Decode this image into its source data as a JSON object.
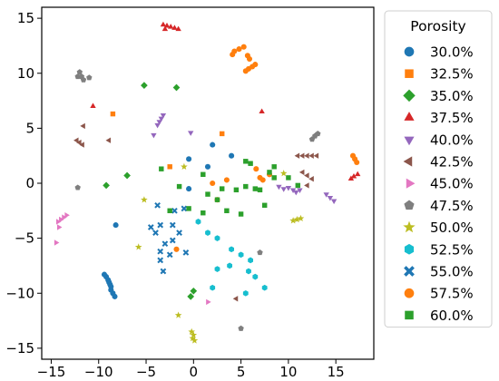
{
  "chart_data": {
    "type": "scatter",
    "title": "",
    "xlabel": "",
    "ylabel": "",
    "xlim": [
      -16,
      19
    ],
    "ylim": [
      -16,
      16
    ],
    "xticks": [
      -15,
      -10,
      -5,
      0,
      5,
      10,
      15
    ],
    "yticks": [
      -15,
      -10,
      -5,
      0,
      5,
      10,
      15
    ],
    "grid": false,
    "legend": {
      "title": "Porosity",
      "placement": "outside-right"
    },
    "series": [
      {
        "name": "30.0%",
        "color": "#1f77b4",
        "marker": "circle",
        "points": [
          [
            -9.2,
            -8.5
          ],
          [
            -9.0,
            -8.8
          ],
          [
            -9.4,
            -8.3
          ],
          [
            -8.9,
            -9.0
          ],
          [
            -8.7,
            -9.7
          ],
          [
            -8.5,
            -10.0
          ],
          [
            -8.3,
            -10.3
          ],
          [
            -8.7,
            -9.4
          ],
          [
            -8.8,
            -9.2
          ],
          [
            -8.2,
            -3.8
          ],
          [
            -0.5,
            -0.5
          ],
          [
            1.5,
            1.5
          ],
          [
            2.0,
            3.5
          ],
          [
            4.0,
            2.5
          ],
          [
            -0.5,
            2.2
          ]
        ]
      },
      {
        "name": "32.5%",
        "color": "#ff7f0e",
        "marker": "square",
        "points": [
          [
            -8.5,
            6.3
          ],
          [
            -2.5,
            1.5
          ],
          [
            3.0,
            4.5
          ]
        ]
      },
      {
        "name": "35.0%",
        "color": "#2ca02c",
        "marker": "diamond",
        "points": [
          [
            -5.2,
            8.9
          ],
          [
            -1.8,
            8.7
          ],
          [
            -7.0,
            0.7
          ],
          [
            -9.2,
            -0.2
          ],
          [
            -0.3,
            -10.3
          ],
          [
            0.0,
            -9.8
          ]
        ]
      },
      {
        "name": "37.5%",
        "color": "#d62728",
        "marker": "triangle-up",
        "points": [
          [
            -3.2,
            14.4
          ],
          [
            -2.8,
            14.3
          ],
          [
            -2.4,
            14.2
          ],
          [
            -2.0,
            14.1
          ],
          [
            -1.6,
            14.0
          ],
          [
            -3.0,
            14.0
          ],
          [
            -10.6,
            7.0
          ],
          [
            7.2,
            6.5
          ],
          [
            16.6,
            0.4
          ],
          [
            16.9,
            0.6
          ],
          [
            17.3,
            0.8
          ]
        ]
      },
      {
        "name": "40.0%",
        "color": "#9467bd",
        "marker": "triangle-down",
        "points": [
          [
            -3.6,
            5.6
          ],
          [
            -3.4,
            5.9
          ],
          [
            -3.2,
            6.2
          ],
          [
            -3.8,
            5.3
          ],
          [
            -4.2,
            4.4
          ],
          [
            -0.3,
            4.6
          ],
          [
            9.5,
            -0.5
          ],
          [
            10.0,
            -0.4
          ],
          [
            10.5,
            -0.6
          ],
          [
            10.8,
            -0.8
          ],
          [
            11.2,
            -0.6
          ],
          [
            9.0,
            -0.3
          ],
          [
            14.0,
            -1.0
          ],
          [
            14.4,
            -1.3
          ],
          [
            14.8,
            -1.6
          ]
        ]
      },
      {
        "name": "42.5%",
        "color": "#8c564b",
        "marker": "triangle-left",
        "points": [
          [
            -12.0,
            3.7
          ],
          [
            -11.7,
            3.5
          ],
          [
            -12.3,
            3.9
          ],
          [
            -11.6,
            5.2
          ],
          [
            -8.9,
            3.9
          ],
          [
            11.0,
            2.5
          ],
          [
            11.5,
            2.5
          ],
          [
            12.0,
            2.5
          ],
          [
            12.5,
            2.5
          ],
          [
            13.0,
            2.5
          ],
          [
            11.5,
            1.0
          ],
          [
            12.0,
            0.7
          ],
          [
            12.5,
            0.4
          ],
          [
            12.0,
            -0.2
          ],
          [
            4.5,
            -10.5
          ]
        ]
      },
      {
        "name": "45.0%",
        "color": "#e377c2",
        "marker": "triangle-right",
        "points": [
          [
            -14.3,
            -3.5
          ],
          [
            -14.0,
            -3.3
          ],
          [
            -13.7,
            -3.1
          ],
          [
            -13.4,
            -2.9
          ],
          [
            -14.2,
            -4.0
          ],
          [
            -14.5,
            -5.4
          ],
          [
            1.5,
            -10.8
          ]
        ]
      },
      {
        "name": "47.5%",
        "color": "#7f7f7f",
        "marker": "pentagon",
        "points": [
          [
            -12.0,
            10.1
          ],
          [
            -11.8,
            9.7
          ],
          [
            -11.6,
            9.4
          ],
          [
            -12.2,
            9.7
          ],
          [
            -11.0,
            9.6
          ],
          [
            -12.2,
            -0.4
          ],
          [
            12.5,
            4.0
          ],
          [
            12.8,
            4.3
          ],
          [
            13.1,
            4.5
          ],
          [
            7.0,
            -6.3
          ],
          [
            5.0,
            -13.2
          ]
        ]
      },
      {
        "name": "50.0%",
        "color": "#bcbd22",
        "marker": "star",
        "points": [
          [
            -0.2,
            -13.5
          ],
          [
            0.0,
            -13.8
          ],
          [
            -0.1,
            -14.1
          ],
          [
            0.1,
            -14.3
          ],
          [
            -1.6,
            -12.0
          ],
          [
            -5.2,
            -1.5
          ],
          [
            -5.8,
            -5.8
          ],
          [
            10.5,
            -3.4
          ],
          [
            10.9,
            -3.3
          ],
          [
            11.3,
            -3.2
          ],
          [
            -1.0,
            1.5
          ],
          [
            9.5,
            0.9
          ]
        ]
      },
      {
        "name": "52.5%",
        "color": "#17becf",
        "marker": "hexagon",
        "points": [
          [
            0.5,
            -3.5
          ],
          [
            1.5,
            -4.5
          ],
          [
            2.5,
            -5.0
          ],
          [
            4.0,
            -6.0
          ],
          [
            5.0,
            -6.5
          ],
          [
            5.8,
            -8.0
          ],
          [
            6.5,
            -8.5
          ],
          [
            7.5,
            -9.5
          ],
          [
            6.0,
            -7.0
          ],
          [
            3.8,
            -7.5
          ],
          [
            2.5,
            -7.8
          ],
          [
            2.0,
            -9.5
          ],
          [
            5.5,
            -10.0
          ]
        ]
      },
      {
        "name": "55.0%",
        "color": "#1f77b4",
        "marker": "cross",
        "points": [
          [
            -4.5,
            -4.0
          ],
          [
            -4.0,
            -4.5
          ],
          [
            -3.5,
            -3.8
          ],
          [
            -3.0,
            -5.5
          ],
          [
            -3.5,
            -6.2
          ],
          [
            -2.5,
            -6.5
          ],
          [
            -2.2,
            -5.2
          ],
          [
            -1.5,
            -4.5
          ],
          [
            -3.5,
            -7.0
          ],
          [
            -3.2,
            -8.0
          ],
          [
            -2.0,
            -2.5
          ],
          [
            -1.0,
            -2.3
          ],
          [
            -3.8,
            -2.0
          ],
          [
            -2.2,
            -3.8
          ],
          [
            -0.8,
            -6.3
          ]
        ]
      },
      {
        "name": "57.5%",
        "color": "#ff7f0e",
        "marker": "circle",
        "points": [
          [
            4.3,
            12.0
          ],
          [
            4.8,
            12.2
          ],
          [
            5.3,
            12.4
          ],
          [
            4.1,
            11.7
          ],
          [
            5.7,
            11.6
          ],
          [
            5.9,
            11.3
          ],
          [
            5.5,
            10.2
          ],
          [
            5.8,
            10.4
          ],
          [
            6.2,
            10.6
          ],
          [
            6.5,
            10.8
          ],
          [
            16.8,
            2.5
          ],
          [
            17.0,
            2.2
          ],
          [
            17.2,
            1.9
          ],
          [
            2.0,
            0.0
          ],
          [
            3.5,
            0.3
          ],
          [
            7.0,
            0.5
          ],
          [
            7.3,
            0.3
          ],
          [
            6.6,
            1.3
          ],
          [
            8.0,
            0.8
          ],
          [
            -1.8,
            -6.0
          ],
          [
            2.5,
            -1.5
          ]
        ]
      },
      {
        "name": "60.0%",
        "color": "#2ca02c",
        "marker": "square",
        "points": [
          [
            5.5,
            2.0
          ],
          [
            6.0,
            1.8
          ],
          [
            8.0,
            1.0
          ],
          [
            8.5,
            1.5
          ],
          [
            8.5,
            0.5
          ],
          [
            10.0,
            0.5
          ],
          [
            11.0,
            -0.2
          ],
          [
            5.5,
            -0.3
          ],
          [
            6.5,
            -0.5
          ],
          [
            7.0,
            -0.6
          ],
          [
            3.0,
            -0.5
          ],
          [
            4.5,
            -0.6
          ],
          [
            2.5,
            -1.5
          ],
          [
            1.5,
            -1.0
          ],
          [
            1.0,
            -2.7
          ],
          [
            -0.5,
            -2.3
          ],
          [
            3.5,
            -2.5
          ],
          [
            5.0,
            -2.8
          ],
          [
            -3.4,
            1.3
          ],
          [
            -1.5,
            -0.3
          ],
          [
            1.0,
            0.8
          ],
          [
            7.5,
            -2.0
          ],
          [
            -2.5,
            -2.5
          ]
        ]
      }
    ]
  }
}
